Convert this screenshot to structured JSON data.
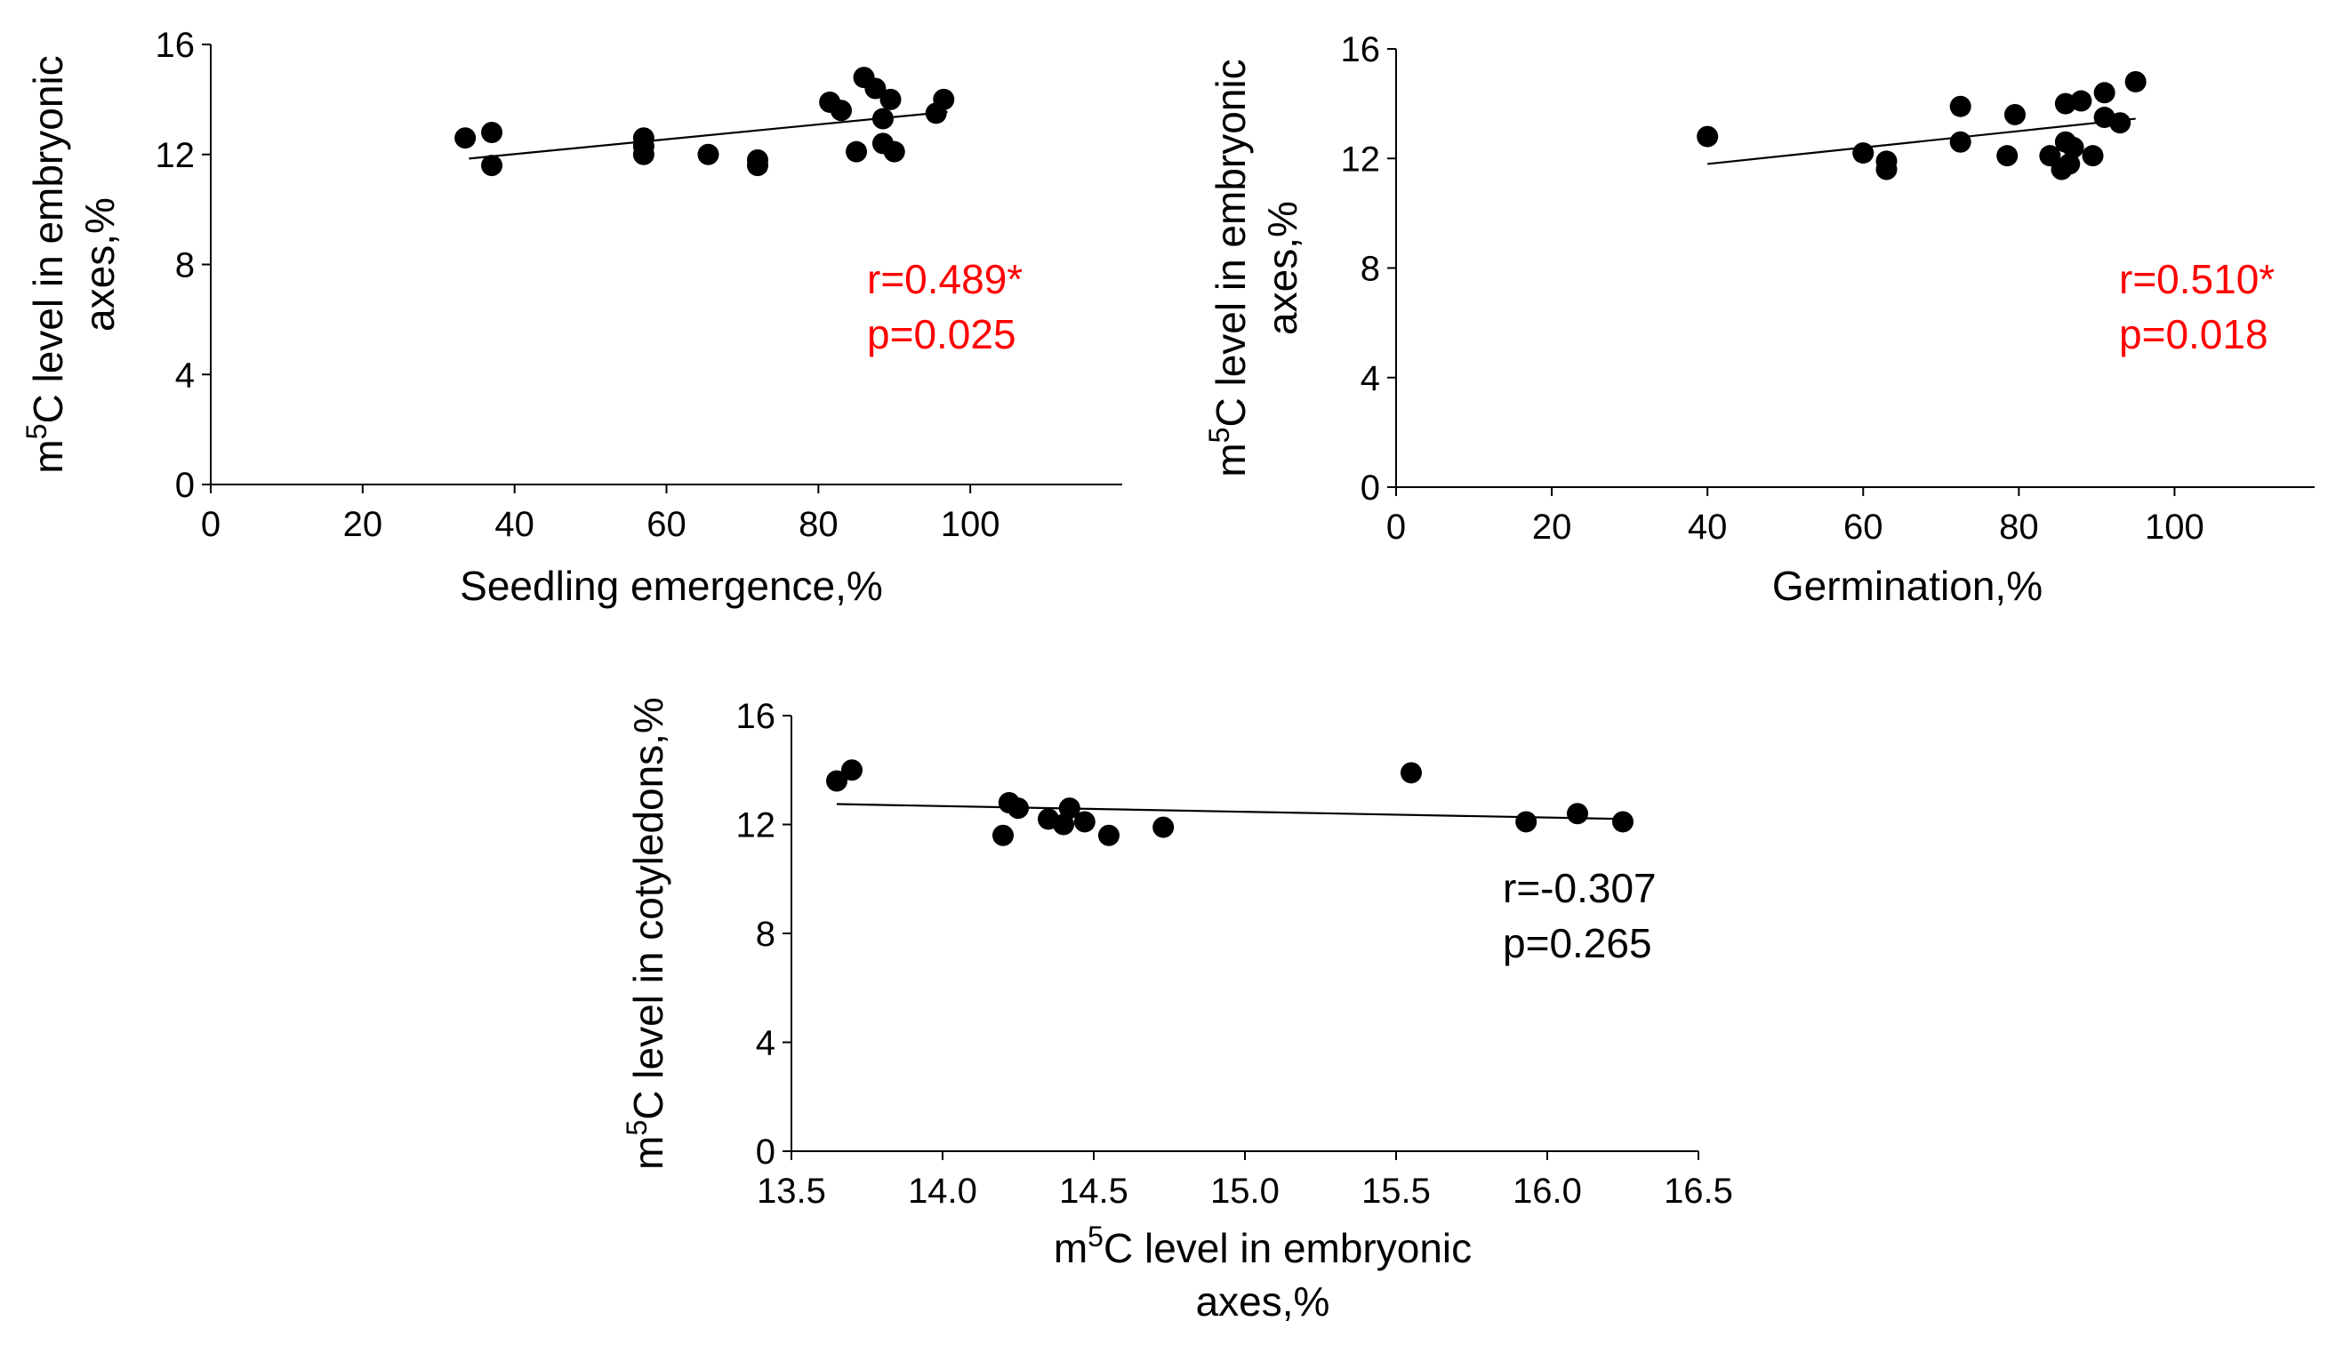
{
  "chart_data": [
    {
      "type": "scatter",
      "title": "",
      "xlabel": "Seedling emergence,%",
      "ylabel": {
        "line1_pre": "m",
        "line1_sup": "5",
        "line1_post": "C level in embryonic",
        "line2": "axes,%"
      },
      "xlim": [
        0,
        120
      ],
      "ylim": [
        0,
        16
      ],
      "xticks": [
        0,
        20,
        40,
        60,
        80,
        100
      ],
      "yticks": [
        0,
        4,
        8,
        12,
        16
      ],
      "points": [
        [
          33.5,
          12.6
        ],
        [
          37,
          12.8
        ],
        [
          37,
          11.6
        ],
        [
          57,
          12.6
        ],
        [
          57,
          12.3
        ],
        [
          57,
          12.0
        ],
        [
          65.5,
          12.0
        ],
        [
          72,
          11.8
        ],
        [
          72,
          11.6
        ],
        [
          81.5,
          13.9
        ],
        [
          83,
          13.6
        ],
        [
          85,
          12.1
        ],
        [
          86,
          14.8
        ],
        [
          87.5,
          14.4
        ],
        [
          88.5,
          13.3
        ],
        [
          88.5,
          12.4
        ],
        [
          89.5,
          14.0
        ],
        [
          90,
          12.1
        ],
        [
          95.5,
          13.5
        ],
        [
          96.5,
          14.0
        ]
      ],
      "trendline": {
        "x": [
          34,
          97
        ],
        "y": [
          11.85,
          13.55
        ]
      },
      "annotation": {
        "color": "#ff0000",
        "lines": [
          "r=0.489*",
          "p=0.025"
        ]
      }
    },
    {
      "type": "scatter",
      "title": "",
      "xlabel": "Germination,%",
      "ylabel": {
        "line1_pre": "m",
        "line1_sup": "5",
        "line1_post": "C level in embryonic",
        "line2": "axes,%"
      },
      "xlim": [
        0,
        118
      ],
      "ylim": [
        0,
        16
      ],
      "xticks": [
        0,
        20,
        40,
        60,
        80,
        100
      ],
      "yticks": [
        0,
        4,
        8,
        12,
        16
      ],
      "points": [
        [
          40,
          12.8
        ],
        [
          60,
          12.2
        ],
        [
          63,
          11.9
        ],
        [
          63,
          11.6
        ],
        [
          72.5,
          13.9
        ],
        [
          72.5,
          12.6
        ],
        [
          78.5,
          12.1
        ],
        [
          79.5,
          13.6
        ],
        [
          84,
          12.1
        ],
        [
          85.5,
          11.6
        ],
        [
          86,
          14.0
        ],
        [
          86,
          12.6
        ],
        [
          86.5,
          11.8
        ],
        [
          87,
          12.4
        ],
        [
          88,
          14.1
        ],
        [
          89.5,
          12.1
        ],
        [
          91,
          14.4
        ],
        [
          91,
          13.5
        ],
        [
          93,
          13.3
        ],
        [
          95,
          14.8
        ]
      ],
      "trendline": {
        "x": [
          40,
          95
        ],
        "y": [
          11.8,
          13.45
        ]
      },
      "annotation": {
        "color": "#ff0000",
        "lines": [
          "r=0.510*",
          "p=0.018"
        ]
      }
    },
    {
      "type": "scatter",
      "title": "",
      "xlabel": {
        "line1_pre": "m",
        "line1_sup": "5",
        "line1_post": "C level in embryonic",
        "line2": "axes,%"
      },
      "ylabel": {
        "line1_pre": "m",
        "line1_sup": "5",
        "line1_post": "C level in cotyledons,%",
        "line2": ""
      },
      "xlim": [
        13.5,
        16.5
      ],
      "ylim": [
        0,
        16
      ],
      "xticks": [
        13.5,
        14.0,
        14.5,
        15.0,
        15.5,
        16.0,
        16.5
      ],
      "xtick_labels": [
        "13.5",
        "14.0",
        "14.5",
        "15.0",
        "15.5",
        "16.0",
        "16.5"
      ],
      "yticks": [
        0,
        4,
        8,
        12,
        16
      ],
      "points": [
        [
          13.65,
          13.6
        ],
        [
          13.7,
          14.0
        ],
        [
          14.2,
          11.6
        ],
        [
          14.22,
          12.8
        ],
        [
          14.25,
          12.6
        ],
        [
          14.35,
          12.2
        ],
        [
          14.4,
          12.0
        ],
        [
          14.42,
          12.6
        ],
        [
          14.47,
          12.1
        ],
        [
          14.55,
          11.6
        ],
        [
          14.73,
          11.9
        ],
        [
          15.55,
          13.9
        ],
        [
          15.93,
          12.1
        ],
        [
          16.1,
          12.4
        ],
        [
          16.25,
          12.1
        ]
      ],
      "trendline": {
        "x": [
          13.65,
          16.27
        ],
        "y": [
          12.75,
          12.2
        ]
      },
      "annotation": {
        "color": "#000000",
        "lines": [
          "r=-0.307",
          "p=0.265"
        ]
      }
    }
  ]
}
